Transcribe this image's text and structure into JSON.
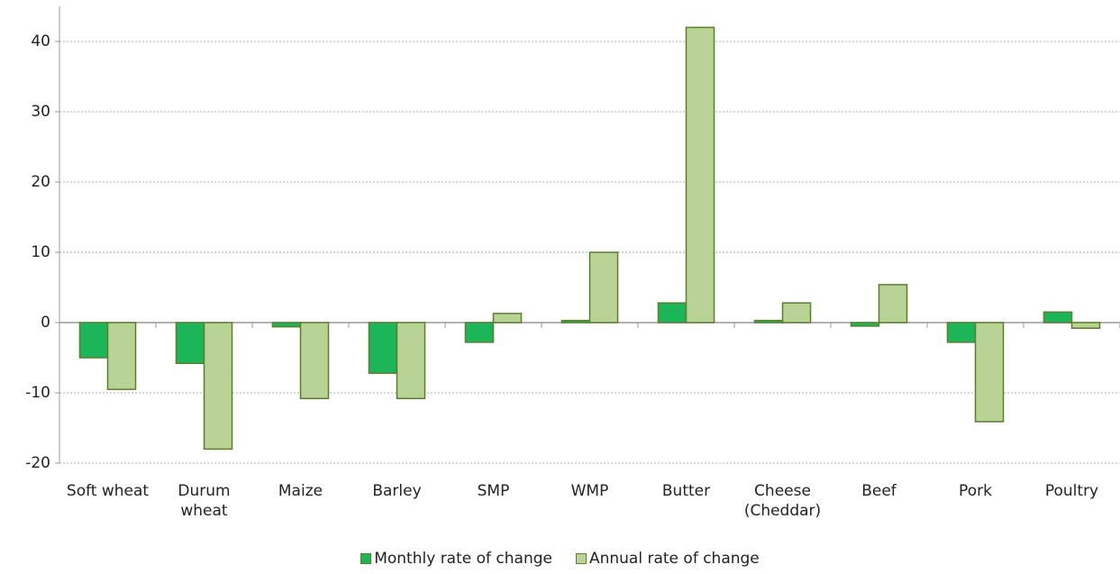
{
  "chart_data": {
    "type": "bar",
    "categories": [
      "Soft wheat",
      "Durum wheat",
      "Maize",
      "Barley",
      "SMP",
      "WMP",
      "Butter",
      "Cheese (Cheddar)",
      "Beef",
      "Pork",
      "Poultry"
    ],
    "series": [
      {
        "name": "Monthly rate of change",
        "color": "#1cb55a",
        "values": [
          -5.0,
          -5.8,
          -0.6,
          -7.2,
          -2.8,
          0.3,
          2.8,
          0.3,
          -0.5,
          -2.8,
          1.5
        ]
      },
      {
        "name": "Annual rate of change",
        "color": "#b9d295",
        "values": [
          -9.5,
          -18.0,
          -10.8,
          -10.8,
          1.3,
          10.0,
          42.0,
          2.8,
          5.4,
          -14.1,
          -0.8
        ]
      }
    ],
    "ylim": [
      -20,
      45
    ],
    "yticks": [
      -20,
      -10,
      0,
      10,
      20,
      30,
      40
    ],
    "grid": true,
    "legend": "bottom"
  }
}
